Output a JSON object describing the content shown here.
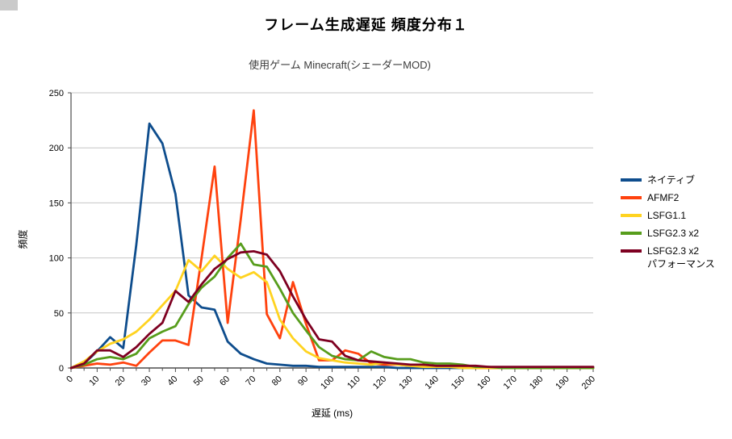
{
  "corner_artifact": {
    "color": "#cacaca"
  },
  "chart_data": {
    "type": "line",
    "title": "フレーム生成遅延 頻度分布１",
    "subtitle": "使用ゲーム Minecraft(シェーダーMOD)",
    "xlabel": "遅延 (ms)",
    "ylabel": "頻度",
    "xlim": [
      0,
      200
    ],
    "ylim": [
      0,
      250
    ],
    "x_start": 0,
    "x_step": 5,
    "x_tick_interval": 10,
    "y_tick_interval": 50,
    "x_tick_labels": [
      "0",
      "10",
      "20",
      "30",
      "40",
      "50",
      "60",
      "70",
      "80",
      "90",
      "100",
      "110",
      "120",
      "130",
      "140",
      "150",
      "160",
      "170",
      "180",
      "190",
      "200"
    ],
    "y_tick_labels": [
      "0",
      "50",
      "100",
      "150",
      "200",
      "250"
    ],
    "grid": "horizontal",
    "grid_color": "#c6c6c6",
    "axis_color": "#4d4d4d",
    "legend_position": "right",
    "series": [
      {
        "name": "ネイティブ",
        "color": "#0e4d8d",
        "values": [
          0,
          4,
          15,
          28,
          18,
          112,
          222,
          204,
          158,
          66,
          55,
          53,
          24,
          13,
          8,
          4,
          3,
          2,
          2,
          1,
          1,
          1,
          1,
          1,
          1,
          0,
          0,
          0,
          0,
          0,
          0,
          0,
          0,
          0,
          0,
          0,
          0,
          0,
          0,
          0,
          0
        ]
      },
      {
        "name": "AFMF2",
        "color": "#ff420e",
        "values": [
          0,
          2,
          4,
          3,
          5,
          2,
          14,
          25,
          25,
          21,
          100,
          183,
          41,
          135,
          234,
          49,
          27,
          78,
          40,
          7,
          7,
          16,
          13,
          4,
          3,
          3,
          2,
          2,
          1,
          1,
          1,
          0,
          0,
          0,
          0,
          0,
          0,
          0,
          0,
          0,
          0
        ]
      },
      {
        "name": "LSFG1.1",
        "color": "#ffd320",
        "values": [
          0,
          6,
          15,
          22,
          26,
          33,
          44,
          57,
          70,
          98,
          88,
          102,
          90,
          82,
          87,
          78,
          44,
          27,
          15,
          9,
          7,
          5,
          4,
          3,
          5,
          3,
          2,
          1,
          1,
          1,
          0,
          0,
          0,
          0,
          0,
          0,
          0,
          0,
          0,
          0,
          0
        ]
      },
      {
        "name": "LSFG2.3 x2",
        "color": "#579d1c",
        "values": [
          0,
          3,
          8,
          10,
          8,
          13,
          27,
          33,
          38,
          58,
          73,
          83,
          100,
          113,
          94,
          92,
          72,
          50,
          34,
          19,
          11,
          8,
          7,
          15,
          10,
          8,
          8,
          5,
          4,
          4,
          3,
          1,
          1,
          0,
          0,
          0,
          0,
          0,
          0,
          0,
          0
        ]
      },
      {
        "name": "LSFG2.3 x2",
        "name_line2": "パフォーマンス",
        "color": "#7e0021",
        "values": [
          0,
          4,
          16,
          16,
          10,
          19,
          31,
          41,
          70,
          60,
          76,
          90,
          99,
          105,
          106,
          103,
          88,
          65,
          44,
          26,
          24,
          11,
          7,
          6,
          5,
          4,
          3,
          3,
          2,
          2,
          2,
          2,
          1,
          1,
          1,
          1,
          1,
          1,
          1,
          1,
          1
        ]
      }
    ]
  }
}
